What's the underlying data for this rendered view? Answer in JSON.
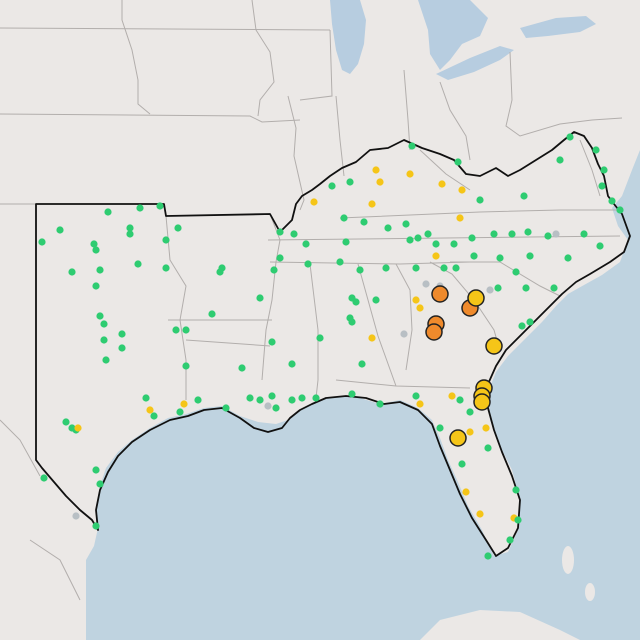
{
  "map": {
    "colors": {
      "land": "#ebe8e6",
      "water": "#bfd3e0",
      "lake": "#b7cde0",
      "state_border": "#b2aeac",
      "region_outline": "#111111",
      "marker_good": "#2ecc71",
      "marker_moderate": "#f5c518",
      "marker_usg": "#ef8a2c",
      "marker_none": "#b8bfc4",
      "marker_stroke": "#222222"
    },
    "marker_categories": [
      "good",
      "moderate",
      "usg",
      "none"
    ]
  }
}
